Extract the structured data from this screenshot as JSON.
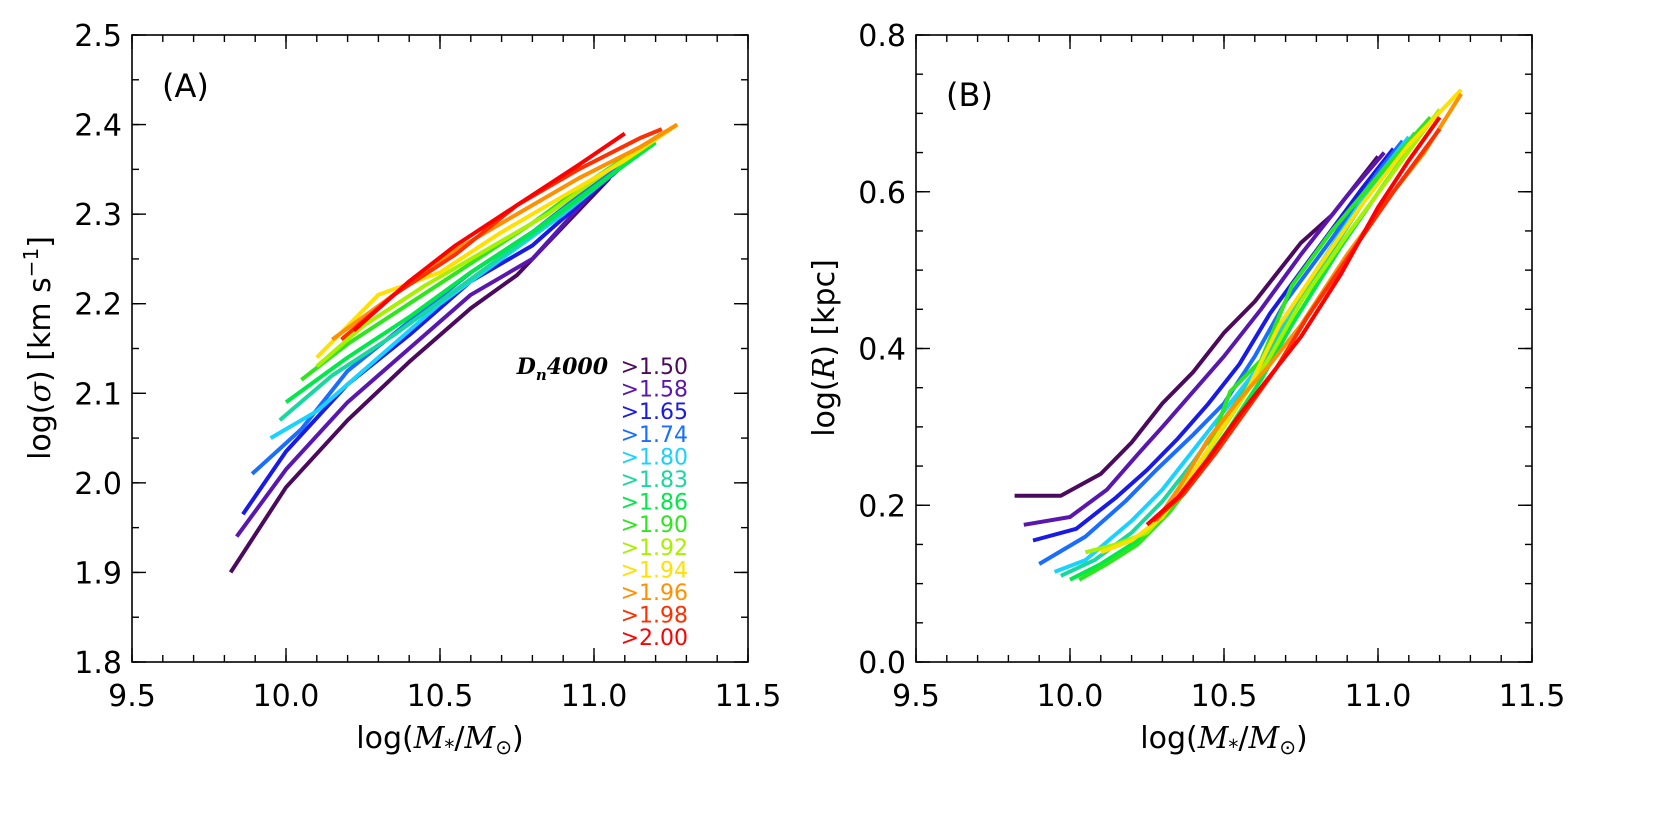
{
  "chart_data": [
    {
      "type": "line",
      "panel_label": "(A)",
      "xlabel": "log(M*/M⊙)",
      "ylabel": "log(σ) [km s⁻¹]",
      "xlim": [
        9.5,
        11.5
      ],
      "ylim": [
        1.8,
        2.5
      ],
      "xticks": [
        9.5,
        10.0,
        10.5,
        11.0,
        11.5
      ],
      "yticks": [
        1.8,
        1.9,
        2.0,
        2.1,
        2.2,
        2.3,
        2.4,
        2.5
      ],
      "legend": {
        "title_main": "D",
        "title_sub": "n",
        "title_tail": "4000",
        "placement": "center-right",
        "entries": [
          ">1.50",
          ">1.58",
          ">1.65",
          ">1.74",
          ">1.80",
          ">1.83",
          ">1.86",
          ">1.90",
          ">1.92",
          ">1.94",
          ">1.96",
          ">1.98",
          ">2.00"
        ]
      },
      "series": [
        {
          "color": "#4b0a5e",
          "points": [
            [
              9.82,
              1.9
            ],
            [
              10.0,
              1.995
            ],
            [
              10.2,
              2.07
            ],
            [
              10.4,
              2.135
            ],
            [
              10.6,
              2.195
            ],
            [
              10.75,
              2.232
            ],
            [
              11.05,
              2.34
            ]
          ]
        },
        {
          "color": "#5a17b0",
          "points": [
            [
              9.84,
              1.94
            ],
            [
              10.0,
              2.015
            ],
            [
              10.2,
              2.09
            ],
            [
              10.4,
              2.15
            ],
            [
              10.6,
              2.21
            ],
            [
              10.8,
              2.25
            ],
            [
              11.05,
              2.345
            ]
          ]
        },
        {
          "color": "#1a1ae6",
          "points": [
            [
              9.86,
              1.965
            ],
            [
              10.0,
              2.035
            ],
            [
              10.2,
              2.11
            ],
            [
              10.4,
              2.165
            ],
            [
              10.6,
              2.225
            ],
            [
              10.8,
              2.265
            ],
            [
              11.08,
              2.35
            ]
          ]
        },
        {
          "color": "#1a6eff",
          "points": [
            [
              9.89,
              2.01
            ],
            [
              10.05,
              2.06
            ],
            [
              10.2,
              2.125
            ],
            [
              10.4,
              2.18
            ],
            [
              10.6,
              2.235
            ],
            [
              10.8,
              2.28
            ],
            [
              11.1,
              2.36
            ]
          ]
        },
        {
          "color": "#1ad2ff",
          "points": [
            [
              9.95,
              2.05
            ],
            [
              10.1,
              2.08
            ],
            [
              10.3,
              2.14
            ],
            [
              10.5,
              2.2
            ],
            [
              10.7,
              2.25
            ],
            [
              10.9,
              2.3
            ],
            [
              11.15,
              2.37
            ]
          ]
        },
        {
          "color": "#18d8a0",
          "points": [
            [
              9.98,
              2.07
            ],
            [
              10.15,
              2.12
            ],
            [
              10.35,
              2.165
            ],
            [
              10.55,
              2.215
            ],
            [
              10.75,
              2.265
            ],
            [
              10.95,
              2.315
            ],
            [
              11.17,
              2.375
            ]
          ]
        },
        {
          "color": "#00e84a",
          "points": [
            [
              10.0,
              2.09
            ],
            [
              10.2,
              2.14
            ],
            [
              10.4,
              2.185
            ],
            [
              10.6,
              2.235
            ],
            [
              10.8,
              2.28
            ],
            [
              11.0,
              2.33
            ],
            [
              11.2,
              2.38
            ]
          ]
        },
        {
          "color": "#2ee61e",
          "points": [
            [
              10.05,
              2.115
            ],
            [
              10.2,
              2.155
            ],
            [
              10.4,
              2.2
            ],
            [
              10.6,
              2.245
            ],
            [
              10.8,
              2.29
            ],
            [
              11.0,
              2.34
            ],
            [
              11.22,
              2.39
            ]
          ]
        },
        {
          "color": "#a8f000",
          "points": [
            [
              10.1,
              2.13
            ],
            [
              10.25,
              2.175
            ],
            [
              10.45,
              2.22
            ],
            [
              10.65,
              2.26
            ],
            [
              10.85,
              2.3
            ],
            [
              11.05,
              2.35
            ],
            [
              11.25,
              2.395
            ]
          ]
        },
        {
          "color": "#ffe000",
          "points": [
            [
              10.1,
              2.14
            ],
            [
              10.3,
              2.21
            ],
            [
              10.5,
              2.235
            ],
            [
              10.7,
              2.28
            ],
            [
              10.9,
              2.32
            ],
            [
              11.1,
              2.36
            ],
            [
              11.27,
              2.4
            ]
          ]
        },
        {
          "color": "#ff9000",
          "points": [
            [
              10.15,
              2.16
            ],
            [
              10.35,
              2.21
            ],
            [
              10.55,
              2.26
            ],
            [
              10.75,
              2.3
            ],
            [
              10.95,
              2.34
            ],
            [
              11.15,
              2.375
            ],
            [
              11.27,
              2.4
            ]
          ]
        },
        {
          "color": "#ff3000",
          "points": [
            [
              10.18,
              2.16
            ],
            [
              10.35,
              2.21
            ],
            [
              10.55,
              2.255
            ],
            [
              10.75,
              2.31
            ],
            [
              10.95,
              2.35
            ],
            [
              11.15,
              2.385
            ],
            [
              11.22,
              2.395
            ]
          ]
        },
        {
          "color": "#ff0000",
          "points": [
            [
              10.22,
              2.17
            ],
            [
              10.4,
              2.225
            ],
            [
              10.55,
              2.265
            ],
            [
              10.75,
              2.31
            ],
            [
              10.95,
              2.355
            ],
            [
              11.1,
              2.39
            ]
          ]
        }
      ]
    },
    {
      "type": "line",
      "panel_label": "(B)",
      "xlabel": "log(M*/M⊙)",
      "ylabel": "log(R) [kpc]",
      "xlim": [
        9.5,
        11.5
      ],
      "ylim": [
        0.0,
        0.8
      ],
      "xticks": [
        9.5,
        10.0,
        10.5,
        11.0,
        11.5
      ],
      "yticks": [
        0.0,
        0.2,
        0.4,
        0.6,
        0.8
      ],
      "series": [
        {
          "color": "#4b0a5e",
          "points": [
            [
              9.82,
              0.212
            ],
            [
              9.97,
              0.212
            ],
            [
              10.1,
              0.24
            ],
            [
              10.2,
              0.28
            ],
            [
              10.3,
              0.33
            ],
            [
              10.4,
              0.37
            ],
            [
              10.5,
              0.42
            ],
            [
              10.6,
              0.46
            ],
            [
              10.75,
              0.535
            ],
            [
              10.85,
              0.57
            ],
            [
              11.0,
              0.645
            ]
          ]
        },
        {
          "color": "#5a17b0",
          "points": [
            [
              9.85,
              0.175
            ],
            [
              10.0,
              0.185
            ],
            [
              10.12,
              0.22
            ],
            [
              10.22,
              0.265
            ],
            [
              10.3,
              0.3
            ],
            [
              10.4,
              0.345
            ],
            [
              10.5,
              0.39
            ],
            [
              10.62,
              0.45
            ],
            [
              10.75,
              0.52
            ],
            [
              10.9,
              0.595
            ],
            [
              11.02,
              0.65
            ]
          ]
        },
        {
          "color": "#1a1ae6",
          "points": [
            [
              9.88,
              0.155
            ],
            [
              10.02,
              0.17
            ],
            [
              10.15,
              0.21
            ],
            [
              10.25,
              0.245
            ],
            [
              10.35,
              0.285
            ],
            [
              10.45,
              0.33
            ],
            [
              10.55,
              0.38
            ],
            [
              10.65,
              0.445
            ],
            [
              10.8,
              0.525
            ],
            [
              10.95,
              0.605
            ],
            [
              11.05,
              0.655
            ]
          ]
        },
        {
          "color": "#1a6eff",
          "points": [
            [
              9.9,
              0.125
            ],
            [
              10.05,
              0.16
            ],
            [
              10.18,
              0.205
            ],
            [
              10.28,
              0.245
            ],
            [
              10.4,
              0.29
            ],
            [
              10.5,
              0.33
            ],
            [
              10.6,
              0.39
            ],
            [
              10.7,
              0.46
            ],
            [
              10.85,
              0.54
            ],
            [
              11.0,
              0.625
            ],
            [
              11.08,
              0.665
            ]
          ]
        },
        {
          "color": "#1ad2ff",
          "points": [
            [
              9.95,
              0.115
            ],
            [
              10.05,
              0.13
            ],
            [
              10.2,
              0.18
            ],
            [
              10.3,
              0.22
            ],
            [
              10.4,
              0.27
            ],
            [
              10.5,
              0.32
            ],
            [
              10.6,
              0.37
            ],
            [
              10.7,
              0.44
            ],
            [
              10.85,
              0.53
            ],
            [
              11.0,
              0.62
            ],
            [
              11.1,
              0.67
            ]
          ]
        },
        {
          "color": "#18d8a0",
          "points": [
            [
              9.97,
              0.11
            ],
            [
              10.08,
              0.13
            ],
            [
              10.2,
              0.165
            ],
            [
              10.3,
              0.205
            ],
            [
              10.4,
              0.255
            ],
            [
              10.5,
              0.31
            ],
            [
              10.6,
              0.365
            ],
            [
              10.7,
              0.43
            ],
            [
              10.85,
              0.525
            ],
            [
              11.0,
              0.615
            ],
            [
              11.12,
              0.675
            ]
          ]
        },
        {
          "color": "#00e84a",
          "points": [
            [
              10.0,
              0.105
            ],
            [
              10.1,
              0.125
            ],
            [
              10.22,
              0.155
            ],
            [
              10.32,
              0.195
            ],
            [
              10.42,
              0.245
            ],
            [
              10.52,
              0.3
            ],
            [
              10.62,
              0.36
            ],
            [
              10.72,
              0.43
            ],
            [
              10.88,
              0.53
            ],
            [
              11.02,
              0.61
            ],
            [
              11.15,
              0.68
            ]
          ]
        },
        {
          "color": "#2ee61e",
          "points": [
            [
              10.03,
              0.105
            ],
            [
              10.12,
              0.125
            ],
            [
              10.22,
              0.15
            ],
            [
              10.32,
              0.19
            ],
            [
              10.42,
              0.24
            ],
            [
              10.52,
              0.345
            ],
            [
              10.62,
              0.385
            ],
            [
              10.72,
              0.48
            ],
            [
              10.85,
              0.55
            ],
            [
              11.0,
              0.62
            ],
            [
              11.17,
              0.695
            ]
          ]
        },
        {
          "color": "#a8f000",
          "points": [
            [
              10.05,
              0.14
            ],
            [
              10.15,
              0.15
            ],
            [
              10.25,
              0.165
            ],
            [
              10.35,
              0.21
            ],
            [
              10.45,
              0.27
            ],
            [
              10.55,
              0.33
            ],
            [
              10.65,
              0.39
            ],
            [
              10.75,
              0.46
            ],
            [
              10.9,
              0.545
            ],
            [
              11.05,
              0.625
            ],
            [
              11.2,
              0.705
            ]
          ]
        },
        {
          "color": "#ffe000",
          "points": [
            [
              10.1,
              0.14
            ],
            [
              10.2,
              0.155
            ],
            [
              10.3,
              0.185
            ],
            [
              10.38,
              0.23
            ],
            [
              10.48,
              0.29
            ],
            [
              10.58,
              0.35
            ],
            [
              10.68,
              0.43
            ],
            [
              10.8,
              0.5
            ],
            [
              10.95,
              0.585
            ],
            [
              11.1,
              0.66
            ],
            [
              11.27,
              0.73
            ]
          ]
        },
        {
          "color": "#ff9000",
          "points": [
            [
              10.28,
              0.18
            ],
            [
              10.35,
              0.22
            ],
            [
              10.45,
              0.285
            ],
            [
              10.55,
              0.335
            ],
            [
              10.65,
              0.38
            ],
            [
              10.75,
              0.43
            ],
            [
              10.9,
              0.52
            ],
            [
              11.05,
              0.6
            ],
            [
              11.15,
              0.65
            ],
            [
              11.27,
              0.725
            ]
          ]
        },
        {
          "color": "#ff3000",
          "points": [
            [
              10.27,
              0.18
            ],
            [
              10.37,
              0.215
            ],
            [
              10.47,
              0.265
            ],
            [
              10.57,
              0.32
            ],
            [
              10.67,
              0.375
            ],
            [
              10.77,
              0.44
            ],
            [
              10.9,
              0.515
            ],
            [
              11.05,
              0.6
            ],
            [
              11.2,
              0.68
            ]
          ]
        },
        {
          "color": "#ff0000",
          "points": [
            [
              10.25,
              0.175
            ],
            [
              10.35,
              0.21
            ],
            [
              10.45,
              0.26
            ],
            [
              10.55,
              0.315
            ],
            [
              10.65,
              0.365
            ],
            [
              10.75,
              0.415
            ],
            [
              10.88,
              0.495
            ],
            [
              11.0,
              0.58
            ],
            [
              11.1,
              0.64
            ],
            [
              11.2,
              0.695
            ]
          ]
        }
      ]
    }
  ]
}
